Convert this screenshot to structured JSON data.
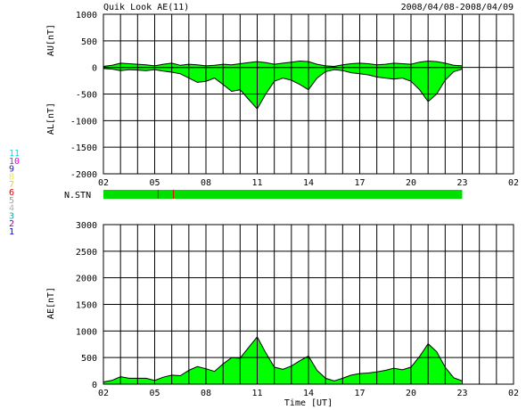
{
  "header": {
    "title": "Quik Look AE(11)",
    "date_range": "2008/04/08-2008/04/09"
  },
  "legend": {
    "items": [
      {
        "label": "11",
        "color": "#00e5e5"
      },
      {
        "label": "10",
        "color": "#e800e8"
      },
      {
        "label": "9",
        "color": "#2020c0"
      },
      {
        "label": "8",
        "color": "#e8e860"
      },
      {
        "label": "7",
        "color": "#d8d040"
      },
      {
        "label": "6",
        "color": "#e00000"
      },
      {
        "label": "5",
        "color": "#a0a0a0"
      },
      {
        "label": "4",
        "color": "#b0b0b0"
      },
      {
        "label": "3",
        "color": "#20a0a0"
      },
      {
        "label": "2",
        "color": "#a000a0"
      },
      {
        "label": "1",
        "color": "#0000e0"
      }
    ]
  },
  "chart_data": [
    {
      "type": "area",
      "title": "",
      "xlabel": "",
      "ylabel_top": "AU[nT]",
      "ylabel_bottom": "AL[nT]",
      "xlim": [
        2,
        26
      ],
      "ylim": [
        -2000,
        1000
      ],
      "yticks": [
        "1000",
        "500",
        "0",
        "-500",
        "-1000",
        "-1500",
        "-2000"
      ],
      "xticks": [
        "02",
        "05",
        "08",
        "11",
        "14",
        "17",
        "20",
        "23",
        "02"
      ],
      "fill_color": "#00ff00",
      "series": [
        {
          "x": [
            2.0,
            2.5,
            3.0,
            3.5,
            4.0,
            4.5,
            5.0,
            5.5,
            6.0,
            6.5,
            7.0,
            7.5,
            8.0,
            8.5,
            9.0,
            9.5,
            10.0,
            10.5,
            11.0,
            11.5,
            12.0,
            12.5,
            13.0,
            13.5,
            14.0,
            14.5,
            15.0,
            15.5,
            16.0,
            16.5,
            17.0,
            17.5,
            18.0,
            18.5,
            19.0,
            19.5,
            20.0,
            20.5,
            21.0,
            21.5,
            22.0,
            22.5,
            23.0
          ],
          "values": [
            20,
            40,
            80,
            70,
            60,
            50,
            30,
            60,
            80,
            40,
            60,
            50,
            30,
            40,
            60,
            50,
            70,
            90,
            110,
            90,
            60,
            80,
            100,
            120,
            110,
            60,
            30,
            20,
            50,
            70,
            80,
            70,
            50,
            60,
            80,
            70,
            60,
            100,
            120,
            110,
            80,
            40,
            30
          ]
        },
        {
          "x": [
            2.0,
            2.5,
            3.0,
            3.5,
            4.0,
            4.5,
            5.0,
            5.5,
            6.0,
            6.5,
            7.0,
            7.5,
            8.0,
            8.5,
            9.0,
            9.5,
            10.0,
            10.5,
            11.0,
            11.5,
            12.0,
            12.5,
            13.0,
            13.5,
            14.0,
            14.5,
            15.0,
            15.5,
            16.0,
            16.5,
            17.0,
            17.5,
            18.0,
            18.5,
            19.0,
            19.5,
            20.0,
            20.5,
            21.0,
            21.5,
            22.0,
            22.5,
            23.0
          ],
          "values": [
            -20,
            -30,
            -60,
            -40,
            -50,
            -60,
            -40,
            -70,
            -90,
            -120,
            -200,
            -280,
            -260,
            -200,
            -320,
            -450,
            -420,
            -600,
            -780,
            -500,
            -260,
            -200,
            -240,
            -320,
            -420,
            -200,
            -80,
            -40,
            -60,
            -100,
            -120,
            -140,
            -180,
            -200,
            -220,
            -200,
            -260,
            -420,
            -640,
            -500,
            -240,
            -80,
            -30
          ]
        }
      ]
    },
    {
      "type": "bar",
      "title": "N.STN",
      "ylabel": "",
      "xlim": [
        2,
        26
      ],
      "bar_start": 2,
      "bar_end": 23,
      "bar_color": "#00e000",
      "markers": [
        {
          "x": 5.2,
          "color": "#e00000"
        },
        {
          "x": 6.1,
          "color": "#e00000"
        }
      ]
    },
    {
      "type": "area",
      "title": "",
      "xlabel": "Time [UT]",
      "ylabel": "AE[nT]",
      "xlim": [
        2,
        26
      ],
      "ylim": [
        0,
        3000
      ],
      "yticks": [
        "3000",
        "2500",
        "2000",
        "1500",
        "1000",
        "500",
        "0"
      ],
      "xticks": [
        "02",
        "05",
        "08",
        "11",
        "14",
        "17",
        "20",
        "23",
        "02"
      ],
      "fill_color": "#00ff00",
      "series": [
        {
          "x": [
            2.0,
            2.5,
            3.0,
            3.5,
            4.0,
            4.5,
            5.0,
            5.5,
            6.0,
            6.5,
            7.0,
            7.5,
            8.0,
            8.5,
            9.0,
            9.5,
            10.0,
            10.5,
            11.0,
            11.5,
            12.0,
            12.5,
            13.0,
            13.5,
            14.0,
            14.5,
            15.0,
            15.5,
            16.0,
            16.5,
            17.0,
            17.5,
            18.0,
            18.5,
            19.0,
            19.5,
            20.0,
            20.5,
            21.0,
            21.5,
            22.0,
            22.5,
            23.0
          ],
          "values": [
            40,
            70,
            140,
            110,
            110,
            110,
            70,
            130,
            170,
            160,
            260,
            330,
            290,
            240,
            380,
            500,
            490,
            690,
            890,
            590,
            320,
            280,
            340,
            440,
            530,
            260,
            110,
            60,
            110,
            170,
            200,
            210,
            230,
            260,
            300,
            270,
            320,
            520,
            760,
            610,
            320,
            120,
            60
          ]
        }
      ]
    }
  ]
}
